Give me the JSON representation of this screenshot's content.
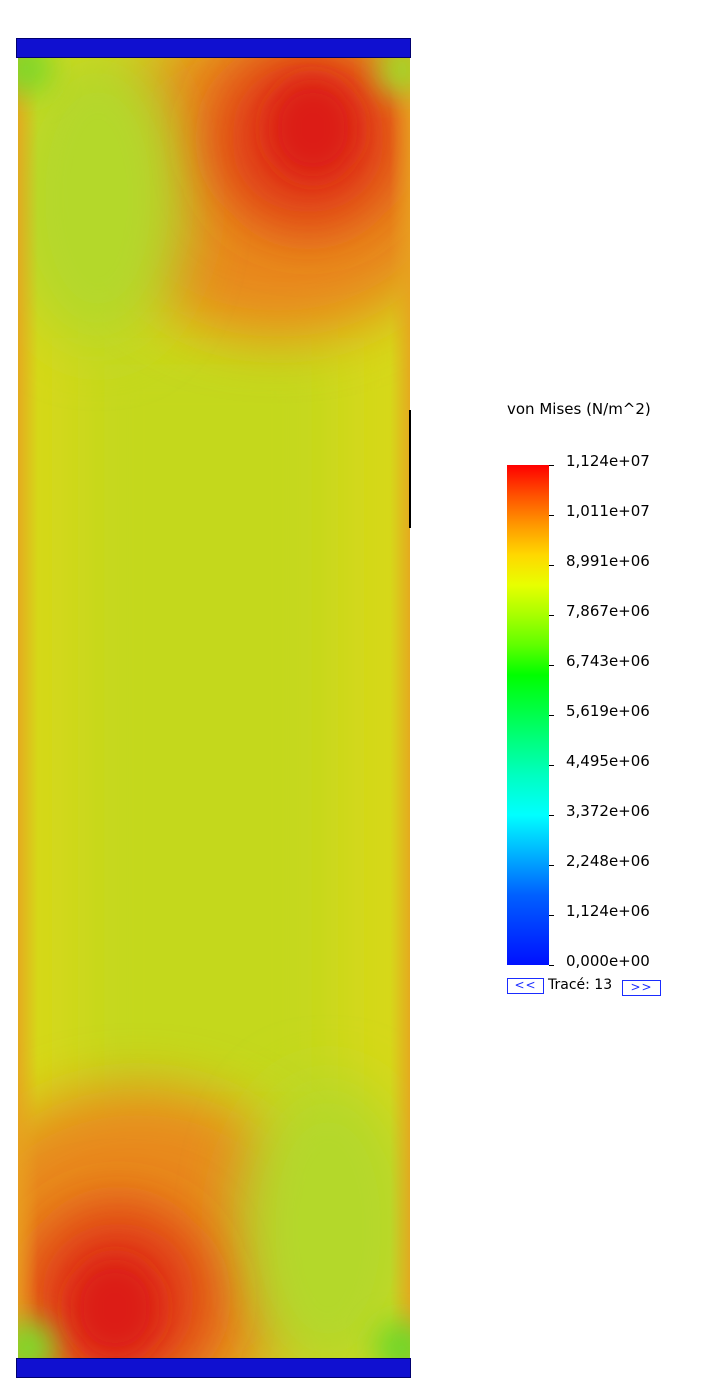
{
  "legend": {
    "title": "von Mises (N/m^2)",
    "ticks": [
      "1,124e+07",
      "1,011e+07",
      "8,991e+06",
      "7,867e+06",
      "6,743e+06",
      "5,619e+06",
      "4,495e+06",
      "3,372e+06",
      "2,248e+06",
      "1,124e+06",
      "0,000e+00"
    ],
    "colors": {
      "max": "#ff0000",
      "mid": "#00ff00",
      "min": "#0010ff"
    }
  },
  "navigation": {
    "prev_label": "<<",
    "plot_label": "Tracé: 13",
    "next_label": ">>"
  },
  "plot": {
    "clamp_color": "#1010d0",
    "base_color": "#d4d81a"
  }
}
